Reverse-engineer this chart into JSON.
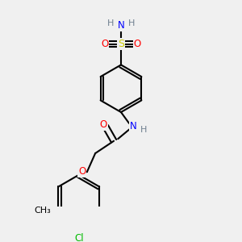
{
  "bg_color": "#f0f0f0",
  "bond_color": "#000000",
  "bond_lw": 1.5,
  "atom_colors": {
    "C": "#000000",
    "H": "#708090",
    "N": "#0000ff",
    "O": "#ff0000",
    "S": "#cccc00",
    "Cl": "#00bb00"
  },
  "font_size": 8.5,
  "figsize": [
    3.0,
    3.0
  ],
  "dpi": 100
}
